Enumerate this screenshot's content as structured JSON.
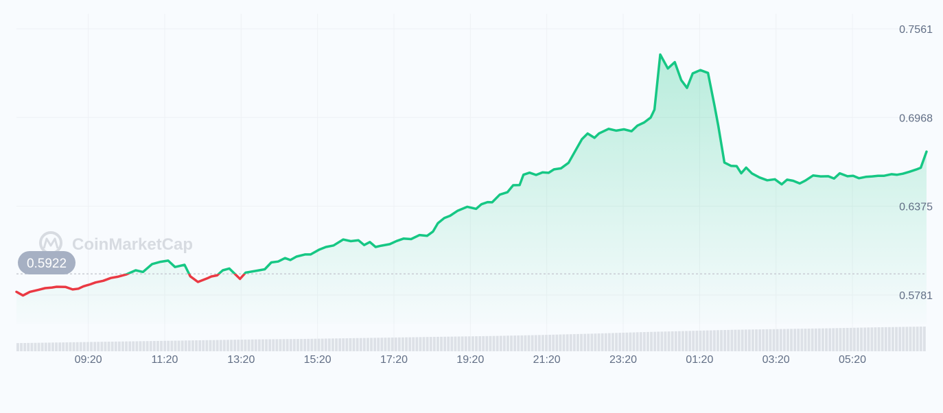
{
  "chart_data": {
    "type": "area",
    "watermark": "CoinMarketCap",
    "open_price_label": "0.5922",
    "open_price": 0.5922,
    "y_ticks": [
      "0.7561",
      "0.6968",
      "0.6375",
      "0.5781"
    ],
    "y_tick_values": [
      0.7561,
      0.6968,
      0.6375,
      0.5781
    ],
    "x_ticks": [
      "09:20",
      "11:20",
      "13:20",
      "15:20",
      "17:20",
      "19:20",
      "21:20",
      "23:20",
      "01:20",
      "03:20",
      "05:20"
    ],
    "x_tick_positions_hours": [
      1.33,
      3.33,
      5.33,
      7.33,
      9.33,
      11.33,
      13.33,
      15.33,
      17.33,
      19.33,
      21.33
    ],
    "x_range_hours": [
      -0.55,
      23.27
    ],
    "ylim": [
      0.5495,
      0.7561
    ],
    "series": [
      {
        "x": [
          -0.55,
          -0.38,
          -0.2,
          0.02,
          0.2,
          0.38,
          0.5,
          0.73,
          0.92,
          1.07,
          1.2,
          1.38,
          1.52,
          1.72,
          1.92,
          2.1,
          2.32,
          2.57,
          2.76,
          3.0,
          3.22,
          3.42,
          3.6,
          3.85,
          4.0,
          4.2,
          4.44,
          4.55,
          4.7,
          4.85,
          5.02,
          5.3,
          5.45,
          5.75,
          5.95,
          6.12,
          6.3,
          6.48,
          6.62,
          6.78,
          7.0,
          7.15,
          7.38,
          7.55,
          7.75,
          8.0,
          8.2,
          8.4,
          8.55,
          8.7,
          8.85,
          9.0,
          9.22,
          9.4,
          9.58,
          9.78,
          10.0,
          10.2,
          10.35,
          10.48,
          10.65,
          10.8,
          11.0,
          11.25,
          11.48,
          11.62,
          11.78,
          11.9,
          12.1,
          12.3,
          12.45,
          12.62,
          12.72,
          12.88,
          13.05,
          13.22,
          13.38,
          13.52,
          13.7,
          13.9,
          14.1,
          14.25,
          14.4,
          14.58,
          14.7,
          14.95,
          15.15,
          15.35,
          15.55,
          15.7,
          15.88,
          16.05,
          16.15,
          16.3,
          16.5,
          16.68,
          16.85,
          17.0,
          17.15,
          17.35,
          17.55,
          17.72,
          17.82,
          17.98,
          18.15,
          18.3,
          18.42,
          18.55,
          18.7,
          18.9,
          19.1,
          19.3,
          19.48,
          19.62,
          19.78,
          19.95,
          20.1,
          20.3,
          20.5,
          20.7,
          20.85,
          21.0,
          21.2,
          21.35,
          21.5,
          21.68,
          21.85,
          22.0,
          22.15,
          22.35,
          22.5,
          22.65,
          22.82,
          23.0,
          23.12,
          23.27
        ],
        "values": [
          0.5802,
          0.5778,
          0.5802,
          0.5815,
          0.5827,
          0.5831,
          0.5836,
          0.5835,
          0.5818,
          0.5823,
          0.5839,
          0.5852,
          0.5865,
          0.5876,
          0.5895,
          0.5903,
          0.5918,
          0.5946,
          0.5935,
          0.5988,
          0.6003,
          0.6011,
          0.5968,
          0.5983,
          0.5906,
          0.5868,
          0.5892,
          0.5905,
          0.5912,
          0.5946,
          0.5958,
          0.5889,
          0.5931,
          0.5944,
          0.5953,
          0.5999,
          0.6005,
          0.6028,
          0.6015,
          0.6038,
          0.6052,
          0.6052,
          0.6085,
          0.6102,
          0.6112,
          0.6152,
          0.6141,
          0.6147,
          0.6115,
          0.6135,
          0.6102,
          0.6111,
          0.6121,
          0.6142,
          0.6158,
          0.6155,
          0.6182,
          0.6177,
          0.6205,
          0.6261,
          0.6296,
          0.6311,
          0.6345,
          0.6371,
          0.6357,
          0.6388,
          0.6402,
          0.6401,
          0.6452,
          0.6468,
          0.6515,
          0.6516,
          0.6585,
          0.6599,
          0.6584,
          0.6601,
          0.6598,
          0.6621,
          0.6628,
          0.6665,
          0.6755,
          0.6823,
          0.6861,
          0.6832,
          0.6862,
          0.6892,
          0.688,
          0.6889,
          0.6876,
          0.6913,
          0.6935,
          0.6968,
          0.7021,
          0.7389,
          0.7296,
          0.7338,
          0.7218,
          0.7166,
          0.7263,
          0.7285,
          0.7266,
          0.7049,
          0.6912,
          0.6667,
          0.6645,
          0.6643,
          0.6595,
          0.6633,
          0.6594,
          0.6567,
          0.6548,
          0.6555,
          0.6521,
          0.6552,
          0.6545,
          0.6527,
          0.6546,
          0.658,
          0.6574,
          0.6575,
          0.656,
          0.6595,
          0.6575,
          0.6578,
          0.6562,
          0.6571,
          0.6574,
          0.6578,
          0.6578,
          0.6589,
          0.6585,
          0.6592,
          0.6605,
          0.662,
          0.6632,
          0.674
        ]
      }
    ],
    "volume_relative": [
      0.33,
      0.36,
      0.39,
      0.42,
      0.45,
      0.48,
      0.5,
      0.53,
      0.56,
      0.59,
      0.62,
      0.66,
      0.71,
      0.77,
      0.82,
      0.87,
      0.9,
      0.93,
      0.97,
      1.0
    ],
    "colors": {
      "up_line": "#16c784",
      "down_line": "#ea3943",
      "area_fill_top": "#16c784",
      "grid": "#eef1f5",
      "open_line": "#c8cbd3",
      "badge_bg": "#a6b0c3",
      "tick_text": "#616e85",
      "volume_bar": "#dde1e7",
      "watermark": "#d7dbe1",
      "background": "#f8fbfe"
    },
    "grid": true
  }
}
